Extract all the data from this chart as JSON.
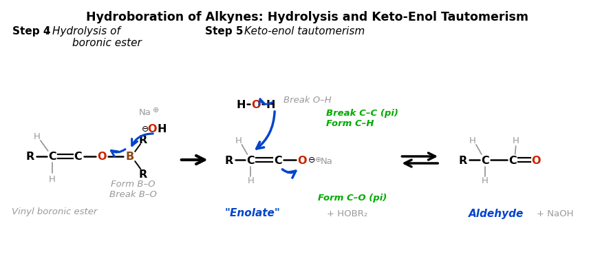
{
  "title": "Hydroboration of Alkynes: Hydrolysis and Keto-Enol Tautomerism",
  "bg_color": "#ffffff",
  "step4_label": "Step 4",
  "step4_desc": ": Hydrolysis of\n        boronic ester",
  "step5_label": "Step 5",
  "step5_desc": ": Keto-enol tautomerism",
  "vinyl_label": "Vinyl boronic ester",
  "enolate_label": "\"Enolate\"",
  "aldehyde_label": "Aldehyde",
  "hobr2_label": "+ HOBR₂",
  "naoh_label": "+ NaOH",
  "form_bo_break_bo": "Form B–O\nBreak B–O",
  "break_oh": "Break O–H",
  "break_cc_form_ch": "Break C–C (pi)\nForm C–H",
  "form_co": "Form C–O (pi)",
  "gray": "#999999",
  "green": "#00aa00",
  "blue": "#0044cc",
  "red": "#cc2200",
  "brown": "#8B4513",
  "black": "#000000",
  "figw": 8.88,
  "figh": 4.06,
  "dpi": 100
}
